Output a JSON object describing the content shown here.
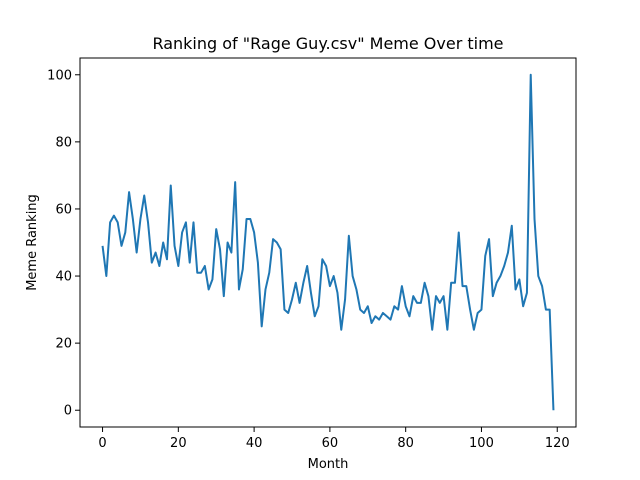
{
  "chart_data": {
    "type": "line",
    "title": "Ranking of \"Rage Guy.csv\" Meme Over time",
    "xlabel": "Month",
    "ylabel": "Meme Ranking",
    "xlim": [
      -5.95,
      124.95
    ],
    "ylim": [
      -5,
      105
    ],
    "xticks": [
      0,
      20,
      40,
      60,
      80,
      100,
      120
    ],
    "yticks": [
      0,
      20,
      40,
      60,
      80,
      100
    ],
    "grid": false,
    "line_color": "#1f77b4",
    "series": [
      {
        "values": [
          49,
          40,
          56,
          58,
          56,
          49,
          53,
          65,
          57,
          47,
          57,
          64,
          56,
          44,
          47,
          43,
          50,
          45,
          67,
          49,
          43,
          53,
          56,
          44,
          56,
          41,
          41,
          43,
          36,
          39,
          54,
          48,
          34,
          50,
          47,
          68,
          36,
          42,
          57,
          57,
          53,
          44,
          25,
          36,
          41,
          51,
          50,
          48,
          30,
          29,
          33,
          38,
          32,
          38,
          43,
          35,
          28,
          31,
          45,
          43,
          37,
          40,
          35,
          24,
          33,
          52,
          40,
          36,
          30,
          29,
          31,
          26,
          28,
          27,
          29,
          28,
          27,
          31,
          30,
          37,
          31,
          28,
          34,
          32,
          32,
          38,
          34,
          24,
          34,
          32,
          34,
          24,
          38,
          38,
          53,
          37,
          37,
          30,
          24,
          29,
          30,
          46,
          51,
          34,
          38,
          40,
          43,
          47,
          55,
          36,
          39,
          31,
          35,
          100,
          57,
          40,
          37,
          30,
          30,
          0
        ]
      }
    ]
  }
}
